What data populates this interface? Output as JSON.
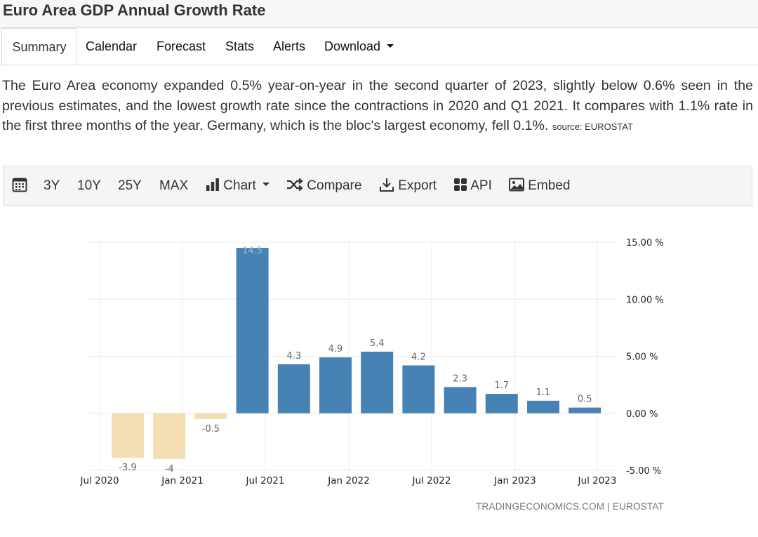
{
  "page": {
    "title": "Euro Area GDP Annual Growth Rate"
  },
  "tabs": [
    {
      "label": "Summary",
      "active": true
    },
    {
      "label": "Calendar"
    },
    {
      "label": "Forecast"
    },
    {
      "label": "Stats"
    },
    {
      "label": "Alerts"
    },
    {
      "label": "Download"
    }
  ],
  "summary": {
    "text": "The Euro Area economy expanded 0.5% year-on-year in the second quarter of 2023, slightly below 0.6% seen in the previous estimates, and the lowest growth rate since the contractions in 2020 and Q1 2021. It compares with 1.1% rate in the first three months of the year. Germany, which is the bloc's largest economy, fell 0.1%.",
    "source": "source: EUROSTAT"
  },
  "toolbar": {
    "ranges": [
      "3Y",
      "10Y",
      "25Y",
      "MAX"
    ],
    "chart_label": "Chart",
    "compare_label": "Compare",
    "export_label": "Export",
    "api_label": "API",
    "embed_label": "Embed"
  },
  "colors": {
    "positive": "#4682b4",
    "negative": "#f4deb3",
    "grid": "#ececec",
    "label": "#666666"
  },
  "chart_data": {
    "type": "bar",
    "title": "Euro Area GDP Annual Growth Rate",
    "unit": "%",
    "periods": [
      "2020 Q3",
      "2020 Q4",
      "2021 Q1",
      "2021 Q2",
      "2021 Q3",
      "2021 Q4",
      "2022 Q1",
      "2022 Q2",
      "2022 Q3",
      "2022 Q4",
      "2023 Q1",
      "2023 Q2"
    ],
    "values": [
      -3.9,
      -4,
      -0.5,
      14.5,
      4.3,
      4.9,
      5.4,
      4.2,
      2.3,
      1.7,
      1.1,
      0.5
    ],
    "x_ticks": [
      "Jul 2020",
      "Jan 2021",
      "Jul 2021",
      "Jan 2022",
      "Jul 2022",
      "Jan 2023",
      "Jul 2023"
    ],
    "y_ticks": [
      "15.00 %",
      "10.00 %",
      "5.00 %",
      "0.00 %",
      "-5.00 %"
    ],
    "y_tick_values": [
      15,
      10,
      5,
      0,
      -5
    ],
    "ylim": [
      -5,
      15
    ],
    "y_axis_side": "right",
    "grid": true,
    "credit": "TRADINGECONOMICS.COM | EUROSTAT"
  }
}
